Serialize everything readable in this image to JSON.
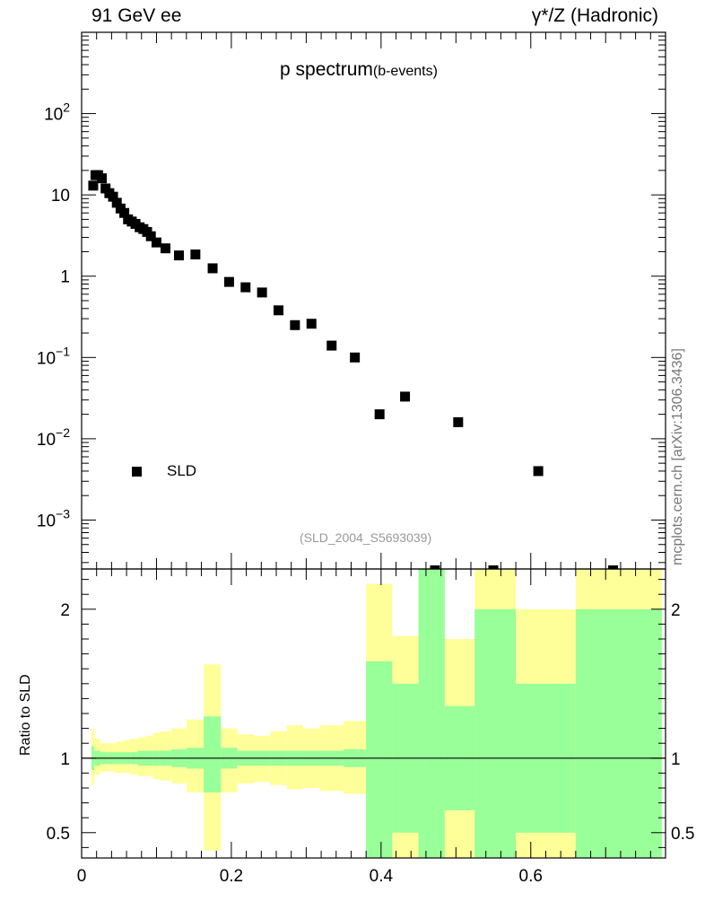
{
  "header": {
    "left": "91 GeV ee",
    "right": "γ*/Z (Hadronic)"
  },
  "plot_title": {
    "main": "p spectrum",
    "sub": "(b-events)"
  },
  "citation": "(SLD_2004_S5693039)",
  "side_label": "mcplots.cern.ch [arXiv:1306.3436]",
  "ratio_ylabel": "Ratio to SLD",
  "legend": {
    "label": "SLD",
    "marker": "square"
  },
  "colors": {
    "inner_band": "#99ff99",
    "outer_band": "#ffff99",
    "marker": "#000000"
  },
  "chart_data": [
    {
      "type": "scatter",
      "name": "main",
      "yscale": "log",
      "xlim": [
        0,
        0.78
      ],
      "ylim": [
        0.00025,
        1000
      ],
      "yticks": [
        {
          "v": 0.001,
          "base": "10",
          "exp": "−3"
        },
        {
          "v": 0.01,
          "base": "10",
          "exp": "−2"
        },
        {
          "v": 0.1,
          "base": "10",
          "exp": "−1"
        },
        {
          "v": 1,
          "base": "1",
          "exp": ""
        },
        {
          "v": 10,
          "base": "10",
          "exp": ""
        },
        {
          "v": 100,
          "base": "10",
          "exp": "2"
        }
      ],
      "series": [
        {
          "name": "SLD",
          "x": [
            0.0155,
            0.0185,
            0.022,
            0.027,
            0.032,
            0.037,
            0.042,
            0.047,
            0.052,
            0.057,
            0.062,
            0.067,
            0.072,
            0.0775,
            0.0825,
            0.0875,
            0.0925,
            0.1,
            0.112,
            0.13,
            0.152,
            0.175,
            0.197,
            0.219,
            0.241,
            0.263,
            0.285,
            0.307,
            0.334,
            0.365,
            0.398,
            0.432,
            0.503,
            0.61
          ],
          "y": [
            13,
            17.5,
            17.5,
            16,
            12,
            10.5,
            9.5,
            8,
            6.8,
            6,
            5,
            4.7,
            4.4,
            4,
            3.8,
            3.5,
            3.1,
            2.6,
            2.2,
            1.8,
            1.85,
            1.25,
            0.85,
            0.73,
            0.63,
            0.38,
            0.25,
            0.26,
            0.14,
            0.1,
            0.02,
            0.033,
            0.016,
            0.004
          ]
        }
      ]
    },
    {
      "type": "area",
      "name": "ratio",
      "ylabel": "Ratio to SLD",
      "xlim": [
        0,
        0.78
      ],
      "ylim": [
        0.33,
        2.27
      ],
      "yticks": [
        0.5,
        1,
        2
      ],
      "xticks": [
        0,
        0.2,
        0.4,
        0.6
      ],
      "xticklabels": [
        "0",
        "0.2",
        "0.4",
        "0.6"
      ],
      "bins": [
        {
          "x0": 0.013,
          "x1": 0.017,
          "inner": [
            0.92,
            1.08
          ],
          "outer": [
            0.82,
            1.2
          ]
        },
        {
          "x0": 0.017,
          "x1": 0.025,
          "inner": [
            0.95,
            1.05
          ],
          "outer": [
            0.89,
            1.13
          ]
        },
        {
          "x0": 0.025,
          "x1": 0.035,
          "inner": [
            0.96,
            1.04
          ],
          "outer": [
            0.91,
            1.1
          ]
        },
        {
          "x0": 0.035,
          "x1": 0.045,
          "inner": [
            0.96,
            1.04
          ],
          "outer": [
            0.91,
            1.1
          ]
        },
        {
          "x0": 0.045,
          "x1": 0.055,
          "inner": [
            0.96,
            1.04
          ],
          "outer": [
            0.9,
            1.11
          ]
        },
        {
          "x0": 0.055,
          "x1": 0.065,
          "inner": [
            0.96,
            1.04
          ],
          "outer": [
            0.9,
            1.12
          ]
        },
        {
          "x0": 0.065,
          "x1": 0.075,
          "inner": [
            0.96,
            1.04
          ],
          "outer": [
            0.89,
            1.13
          ]
        },
        {
          "x0": 0.075,
          "x1": 0.085,
          "inner": [
            0.95,
            1.05
          ],
          "outer": [
            0.88,
            1.14
          ]
        },
        {
          "x0": 0.085,
          "x1": 0.095,
          "inner": [
            0.95,
            1.05
          ],
          "outer": [
            0.88,
            1.15
          ]
        },
        {
          "x0": 0.095,
          "x1": 0.105,
          "inner": [
            0.95,
            1.05
          ],
          "outer": [
            0.86,
            1.17
          ]
        },
        {
          "x0": 0.105,
          "x1": 0.12,
          "inner": [
            0.95,
            1.05
          ],
          "outer": [
            0.85,
            1.18
          ]
        },
        {
          "x0": 0.12,
          "x1": 0.14,
          "inner": [
            0.94,
            1.06
          ],
          "outer": [
            0.83,
            1.2
          ]
        },
        {
          "x0": 0.14,
          "x1": 0.163,
          "inner": [
            0.93,
            1.07
          ],
          "outer": [
            0.77,
            1.26
          ]
        },
        {
          "x0": 0.163,
          "x1": 0.186,
          "inner": [
            0.77,
            1.28
          ],
          "outer": [
            0.38,
            1.63
          ]
        },
        {
          "x0": 0.186,
          "x1": 0.208,
          "inner": [
            0.93,
            1.07
          ],
          "outer": [
            0.77,
            1.2
          ]
        },
        {
          "x0": 0.208,
          "x1": 0.23,
          "inner": [
            0.95,
            1.05
          ],
          "outer": [
            0.83,
            1.16
          ]
        },
        {
          "x0": 0.23,
          "x1": 0.252,
          "inner": [
            0.95,
            1.05
          ],
          "outer": [
            0.84,
            1.15
          ]
        },
        {
          "x0": 0.252,
          "x1": 0.274,
          "inner": [
            0.95,
            1.05
          ],
          "outer": [
            0.82,
            1.18
          ]
        },
        {
          "x0": 0.274,
          "x1": 0.296,
          "inner": [
            0.95,
            1.05
          ],
          "outer": [
            0.79,
            1.22
          ]
        },
        {
          "x0": 0.296,
          "x1": 0.318,
          "inner": [
            0.95,
            1.05
          ],
          "outer": [
            0.8,
            1.2
          ]
        },
        {
          "x0": 0.318,
          "x1": 0.35,
          "inner": [
            0.95,
            1.05
          ],
          "outer": [
            0.78,
            1.22
          ]
        },
        {
          "x0": 0.35,
          "x1": 0.38,
          "inner": [
            0.94,
            1.06
          ],
          "outer": [
            0.76,
            1.25
          ]
        },
        {
          "x0": 0.38,
          "x1": 0.415,
          "inner": [
            0.33,
            1.65
          ],
          "outer": [
            0.33,
            2.17
          ]
        },
        {
          "x0": 0.415,
          "x1": 0.45,
          "inner": [
            0.5,
            1.5
          ],
          "outer": [
            0.33,
            1.82
          ]
        },
        {
          "x0": 0.45,
          "x1": 0.485,
          "inner": [
            0.33,
            2.27
          ],
          "outer": [
            0.33,
            2.27
          ]
        },
        {
          "x0": 0.485,
          "x1": 0.525,
          "inner": [
            0.65,
            1.35
          ],
          "outer": [
            0.33,
            1.8
          ]
        },
        {
          "x0": 0.525,
          "x1": 0.58,
          "inner": [
            0.33,
            2.0
          ],
          "outer": [
            0.33,
            2.27
          ]
        },
        {
          "x0": 0.58,
          "x1": 0.66,
          "inner": [
            0.5,
            1.5
          ],
          "outer": [
            0.33,
            2.0
          ]
        },
        {
          "x0": 0.66,
          "x1": 0.775,
          "inner": [
            0.33,
            2.0
          ],
          "outer": [
            0.33,
            2.27
          ]
        }
      ],
      "offscale_points_x": [
        0.472,
        0.55,
        0.71
      ]
    }
  ]
}
